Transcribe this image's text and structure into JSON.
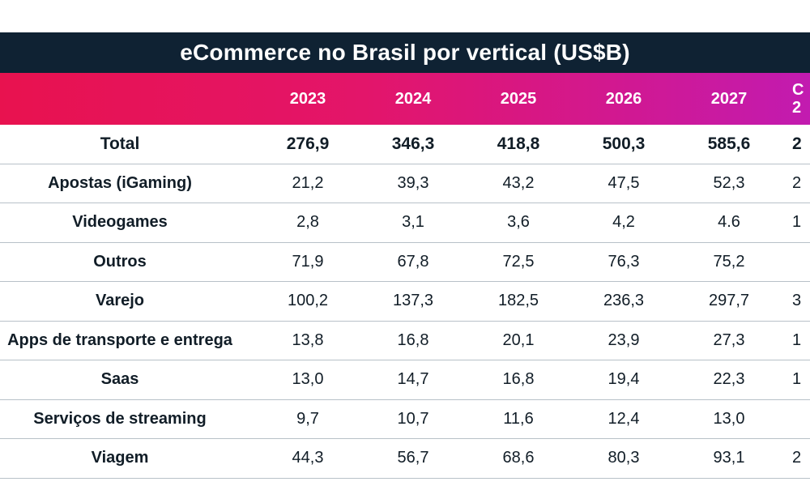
{
  "chart_data": {
    "type": "table",
    "title": "eCommerce no Brasil por vertical (US$B)",
    "columns": [
      "2023",
      "2024",
      "2025",
      "2026",
      "2027"
    ],
    "partial_column_header": [
      "C",
      "2"
    ],
    "rows": [
      {
        "label": "Total",
        "values": [
          "276,9",
          "346,3",
          "418,8",
          "500,3",
          "585,6"
        ],
        "partial": "2"
      },
      {
        "label": "Apostas (iGaming)",
        "values": [
          "21,2",
          "39,3",
          "43,2",
          "47,5",
          "52,3"
        ],
        "partial": "2"
      },
      {
        "label": "Videogames",
        "values": [
          "2,8",
          "3,1",
          "3,6",
          "4,2",
          "4.6"
        ],
        "partial": "1"
      },
      {
        "label": "Outros",
        "values": [
          "71,9",
          "67,8",
          "72,5",
          "76,3",
          "75,2"
        ],
        "partial": ""
      },
      {
        "label": "Varejo",
        "values": [
          "100,2",
          "137,3",
          "182,5",
          "236,3",
          "297,7"
        ],
        "partial": "3"
      },
      {
        "label": "Apps de transporte e entrega",
        "values": [
          "13,8",
          "16,8",
          "20,1",
          "23,9",
          "27,3"
        ],
        "partial": "1"
      },
      {
        "label": "Saas",
        "values": [
          "13,0",
          "14,7",
          "16,8",
          "19,4",
          "22,3"
        ],
        "partial": "1"
      },
      {
        "label": "Serviços de streaming",
        "values": [
          "9,7",
          "10,7",
          "11,6",
          "12,4",
          "13,0"
        ],
        "partial": ""
      },
      {
        "label": "Viagem",
        "values": [
          "44,3",
          "56,7",
          "68,6",
          "80,3",
          "93,1"
        ],
        "partial": "2"
      }
    ]
  },
  "colors": {
    "title_bg": "#0f2233",
    "header_gradient_start": "#e8124f",
    "header_gradient_end": "#c21bb0",
    "row_divider": "#b8c1c8",
    "text": "#111d27"
  }
}
